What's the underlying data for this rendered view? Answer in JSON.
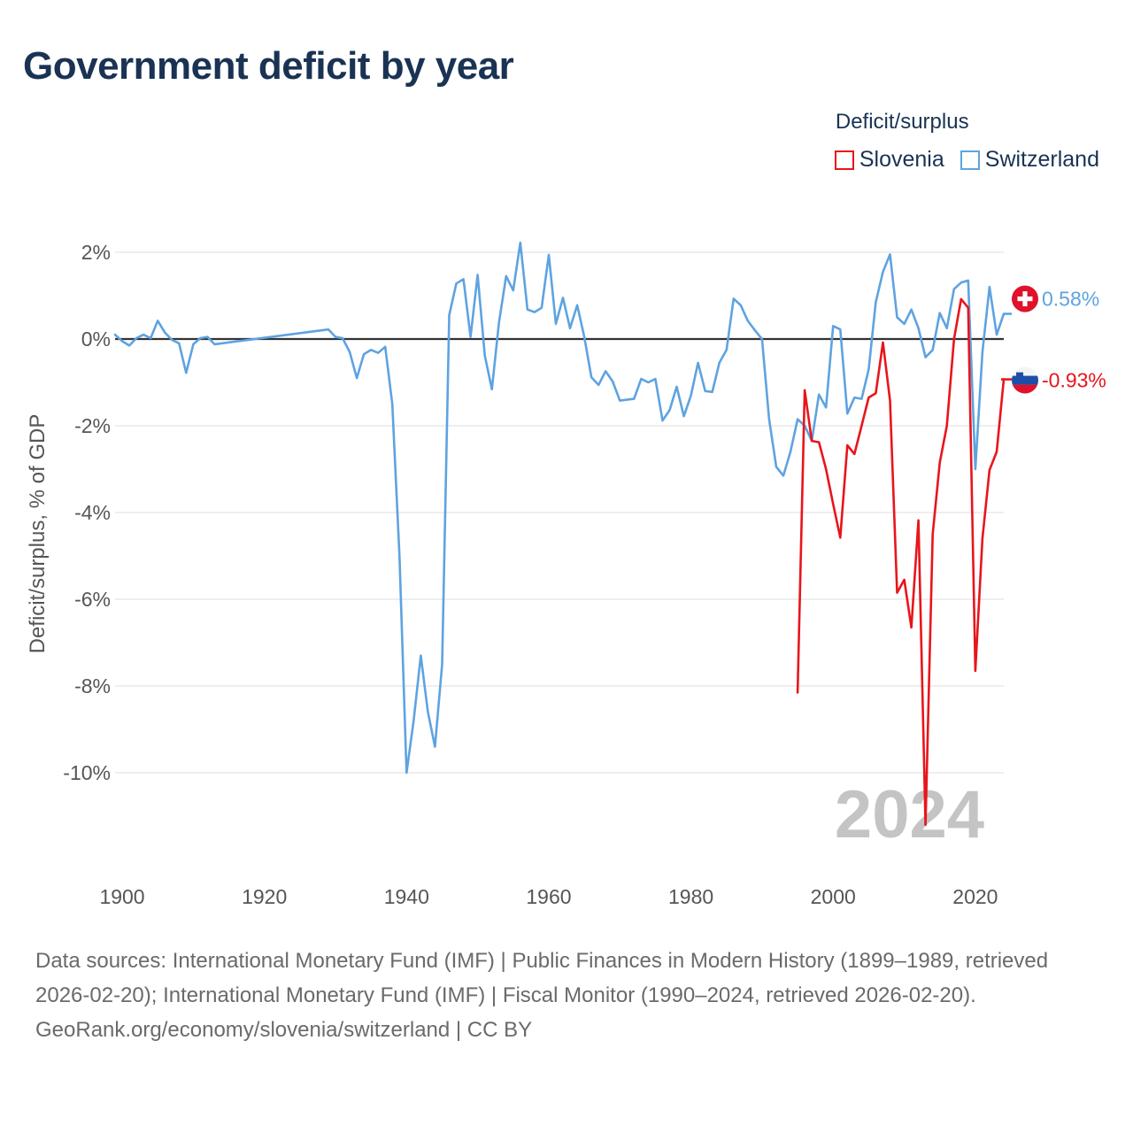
{
  "title": "Government deficit by year",
  "legend": {
    "title": "Deficit/surplus",
    "items": [
      {
        "name": "Slovenia",
        "color": "#e8151b"
      },
      {
        "name": "Switzerland",
        "color": "#5ea3e0"
      }
    ]
  },
  "source": {
    "text": "Data sources: International Monetary Fund (IMF) | Public Finances in Modern History (1899–1989, retrieved 2026-02-20); International Monetary Fund (IMF) | Fiscal Monitor (1990–2024, retrieved 2026-02-20).",
    "link": "GeoRank.org/economy/slovenia/switzerland | CC BY"
  },
  "chart_data": {
    "type": "line",
    "title": "Government deficit by year",
    "xlabel": "",
    "ylabel": "Deficit/surplus, % of GDP",
    "xlim": [
      1899,
      2024
    ],
    "ylim": [
      -11.2,
      2.3
    ],
    "x_ticks": [
      1900,
      1920,
      1940,
      1960,
      1980,
      2000,
      2020
    ],
    "x_tick_labels": [
      "1900",
      "1920",
      "1940",
      "1960",
      "1980",
      "2000",
      "2020"
    ],
    "y_ticks": [
      2,
      0,
      -2,
      -4,
      -6,
      -8,
      -10
    ],
    "y_tick_labels": [
      "2%",
      "0%",
      "-2%",
      "-4%",
      "-6%",
      "-8%",
      "-10%"
    ],
    "year_label": "2024",
    "series": [
      {
        "name": "Switzerland",
        "color": "#5ea3e0",
        "end_label": "0.58%",
        "gap_years": [
          [
            1912,
            1929
          ]
        ],
        "points": [
          [
            1899,
            0.1
          ],
          [
            1900,
            -0.05
          ],
          [
            1901,
            -0.15
          ],
          [
            1902,
            0.02
          ],
          [
            1903,
            0.1
          ],
          [
            1904,
            0.02
          ],
          [
            1905,
            0.42
          ],
          [
            1906,
            0.15
          ],
          [
            1907,
            -0.02
          ],
          [
            1908,
            -0.1
          ],
          [
            1909,
            -0.78
          ],
          [
            1910,
            -0.12
          ],
          [
            1911,
            0.02
          ],
          [
            1912,
            0.05
          ],
          [
            1913,
            -0.12
          ],
          [
            1929,
            0.22
          ],
          [
            1930,
            0.05
          ],
          [
            1931,
            0.02
          ],
          [
            1932,
            -0.3
          ],
          [
            1933,
            -0.9
          ],
          [
            1934,
            -0.35
          ],
          [
            1935,
            -0.25
          ],
          [
            1936,
            -0.32
          ],
          [
            1937,
            -0.18
          ],
          [
            1938,
            -1.5
          ],
          [
            1939,
            -5.0
          ],
          [
            1940,
            -10.0
          ],
          [
            1941,
            -8.8
          ],
          [
            1942,
            -7.3
          ],
          [
            1943,
            -8.6
          ],
          [
            1944,
            -9.4
          ],
          [
            1945,
            -7.5
          ],
          [
            1946,
            0.55
          ],
          [
            1947,
            1.28
          ],
          [
            1948,
            1.38
          ],
          [
            1949,
            0.05
          ],
          [
            1950,
            1.48
          ],
          [
            1951,
            -0.38
          ],
          [
            1952,
            -1.16
          ],
          [
            1953,
            0.38
          ],
          [
            1954,
            1.45
          ],
          [
            1955,
            1.12
          ],
          [
            1956,
            2.22
          ],
          [
            1957,
            0.68
          ],
          [
            1958,
            0.62
          ],
          [
            1959,
            0.72
          ],
          [
            1960,
            1.94
          ],
          [
            1961,
            0.35
          ],
          [
            1962,
            0.95
          ],
          [
            1963,
            0.25
          ],
          [
            1964,
            0.78
          ],
          [
            1965,
            0.05
          ],
          [
            1966,
            -0.88
          ],
          [
            1967,
            -1.06
          ],
          [
            1968,
            -0.74
          ],
          [
            1969,
            -0.98
          ],
          [
            1970,
            -1.42
          ],
          [
            1971,
            -1.4
          ],
          [
            1972,
            -1.38
          ],
          [
            1973,
            -0.92
          ],
          [
            1974,
            -1.0
          ],
          [
            1975,
            -0.92
          ],
          [
            1976,
            -1.88
          ],
          [
            1977,
            -1.64
          ],
          [
            1978,
            -1.1
          ],
          [
            1979,
            -1.78
          ],
          [
            1980,
            -1.3
          ],
          [
            1981,
            -0.55
          ],
          [
            1982,
            -1.2
          ],
          [
            1983,
            -1.22
          ],
          [
            1984,
            -0.55
          ],
          [
            1985,
            -0.25
          ],
          [
            1986,
            0.93
          ],
          [
            1987,
            0.78
          ],
          [
            1988,
            0.42
          ],
          [
            1989,
            0.2
          ],
          [
            1990,
            0.0
          ],
          [
            1991,
            -1.85
          ],
          [
            1992,
            -2.95
          ],
          [
            1993,
            -3.15
          ],
          [
            1994,
            -2.6
          ],
          [
            1995,
            -1.85
          ],
          [
            1996,
            -2.0
          ],
          [
            1997,
            -2.35
          ],
          [
            1998,
            -1.28
          ],
          [
            1999,
            -1.58
          ],
          [
            2000,
            0.3
          ],
          [
            2001,
            0.22
          ],
          [
            2002,
            -1.72
          ],
          [
            2003,
            -1.35
          ],
          [
            2004,
            -1.38
          ],
          [
            2005,
            -0.7
          ],
          [
            2006,
            0.85
          ],
          [
            2007,
            1.55
          ],
          [
            2008,
            1.95
          ],
          [
            2009,
            0.5
          ],
          [
            2010,
            0.35
          ],
          [
            2011,
            0.68
          ],
          [
            2012,
            0.25
          ],
          [
            2013,
            -0.42
          ],
          [
            2014,
            -0.25
          ],
          [
            2015,
            0.6
          ],
          [
            2016,
            0.25
          ],
          [
            2017,
            1.15
          ],
          [
            2018,
            1.3
          ],
          [
            2019,
            1.35
          ],
          [
            2020,
            -3.0
          ],
          [
            2021,
            -0.3
          ],
          [
            2022,
            1.2
          ],
          [
            2023,
            0.1
          ],
          [
            2024,
            0.58
          ]
        ]
      },
      {
        "name": "Slovenia",
        "color": "#e8151b",
        "end_label": "-0.93%",
        "points": [
          [
            1995,
            -8.15
          ],
          [
            1996,
            -1.18
          ],
          [
            1997,
            -2.35
          ],
          [
            1998,
            -2.38
          ],
          [
            1999,
            -3.0
          ],
          [
            2000,
            -3.8
          ],
          [
            2001,
            -4.58
          ],
          [
            2002,
            -2.45
          ],
          [
            2003,
            -2.65
          ],
          [
            2004,
            -2.0
          ],
          [
            2005,
            -1.35
          ],
          [
            2006,
            -1.25
          ],
          [
            2007,
            -0.08
          ],
          [
            2008,
            -1.42
          ],
          [
            2009,
            -5.85
          ],
          [
            2010,
            -5.55
          ],
          [
            2011,
            -6.65
          ],
          [
            2012,
            -4.18
          ],
          [
            2013,
            -11.2
          ],
          [
            2014,
            -4.5
          ],
          [
            2015,
            -2.85
          ],
          [
            2016,
            -2.0
          ],
          [
            2017,
            0.0
          ],
          [
            2018,
            0.92
          ],
          [
            2019,
            0.72
          ],
          [
            2020,
            -7.65
          ],
          [
            2021,
            -4.6
          ],
          [
            2022,
            -3.02
          ],
          [
            2023,
            -2.6
          ],
          [
            2024,
            -0.93
          ]
        ]
      }
    ]
  }
}
